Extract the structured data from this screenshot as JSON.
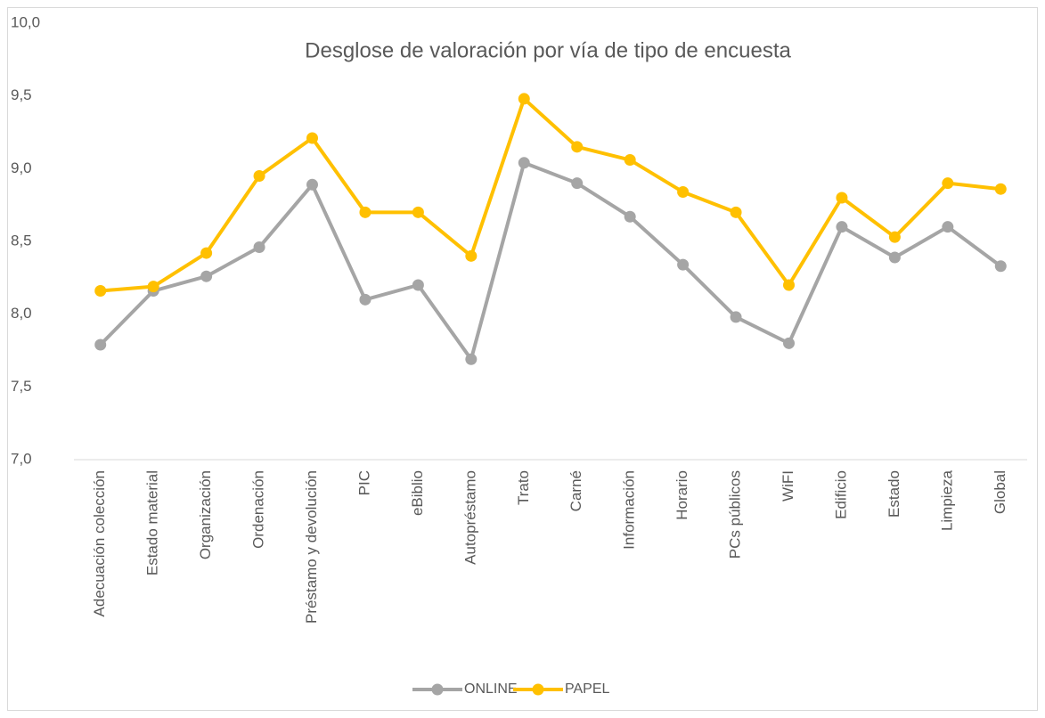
{
  "chart_data": {
    "type": "line",
    "title": "Desglose de valoración por vía de tipo de encuesta",
    "categories": [
      "Adecuación colección",
      "Estado material",
      "Organización",
      "Ordenación",
      "Préstamo y devolución",
      "PIC",
      "eBiblio",
      "Autopréstamo",
      "Trato",
      "Carné",
      "Información",
      "Horario",
      "PCs públicos",
      "WiFI",
      "Edificio",
      "Estado",
      "Limpieza",
      "Global"
    ],
    "series": [
      {
        "name": "ONLINE",
        "color": "#a5a5a5",
        "values": [
          7.79,
          8.16,
          8.26,
          8.46,
          8.89,
          8.1,
          8.2,
          7.69,
          9.04,
          8.9,
          8.67,
          8.34,
          7.98,
          7.8,
          8.6,
          8.39,
          8.6,
          8.33
        ]
      },
      {
        "name": "PAPEL",
        "color": "#ffc000",
        "values": [
          8.16,
          8.19,
          8.42,
          8.95,
          9.21,
          8.7,
          8.7,
          8.4,
          9.48,
          9.15,
          9.06,
          8.84,
          8.7,
          8.2,
          8.8,
          8.53,
          8.9,
          8.86
        ]
      }
    ],
    "ylim": [
      7,
      10
    ],
    "yticks": [
      {
        "value": 7,
        "label": "7,0"
      },
      {
        "value": 7.5,
        "label": "7,5"
      },
      {
        "value": 8,
        "label": "8,0"
      },
      {
        "value": 8.5,
        "label": "8,5"
      },
      {
        "value": 9,
        "label": "9,0"
      },
      {
        "value": 9.5,
        "label": "9,5"
      },
      {
        "value": 10,
        "label": "10,0"
      }
    ],
    "legend": "bottom"
  }
}
